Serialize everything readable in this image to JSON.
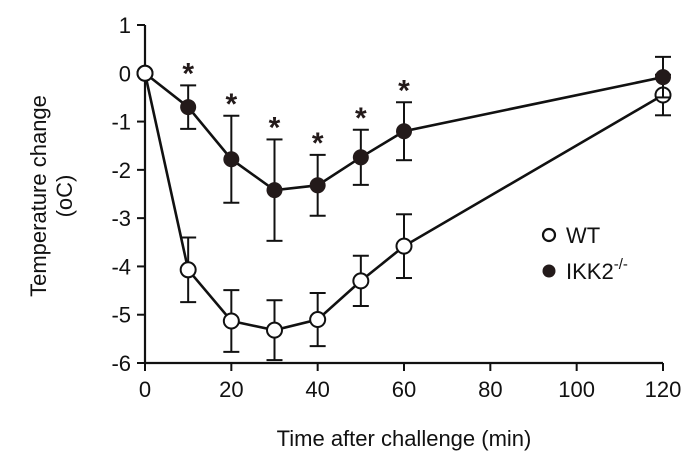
{
  "chart_data": {
    "type": "line",
    "title": "",
    "xlabel": "Time after challenge (min)",
    "ylabel_line1": "Temperature change",
    "ylabel_line2": "(oC)",
    "xlim": [
      0,
      120
    ],
    "ylim": [
      -6,
      1
    ],
    "x_ticks": [
      0,
      20,
      40,
      60,
      80,
      100,
      120
    ],
    "x_tick_labels": [
      "0",
      "20",
      "40",
      "60",
      "80",
      "100",
      "120"
    ],
    "y_ticks": [
      1,
      0,
      -1,
      -2,
      -3,
      -4,
      -5,
      -6
    ],
    "y_tick_labels": [
      "1",
      "0",
      "-1",
      "-2",
      "-3",
      "-4",
      "-5",
      "-6"
    ],
    "grid": false,
    "legend_position": "right-middle",
    "series": [
      {
        "name": "WT",
        "legend_label": "WT",
        "marker": "open-circle",
        "x": [
          0,
          10,
          20,
          30,
          40,
          50,
          60,
          120
        ],
        "values": [
          0,
          -4.07,
          -5.13,
          -5.32,
          -5.1,
          -4.3,
          -3.58,
          -0.45
        ],
        "error": [
          0,
          0.67,
          0.64,
          0.62,
          0.55,
          0.52,
          0.66,
          0.42
        ],
        "significance": []
      },
      {
        "name": "IKK2-/-",
        "legend_label": "IKK2",
        "legend_superscript": "-/-",
        "marker": "filled-circle",
        "x": [
          0,
          10,
          20,
          30,
          40,
          50,
          60,
          120
        ],
        "values": [
          0,
          -0.7,
          -1.78,
          -2.42,
          -2.32,
          -1.74,
          -1.2,
          -0.08
        ],
        "error": [
          0,
          0.45,
          0.9,
          1.05,
          0.63,
          0.57,
          0.6,
          0.42
        ],
        "significance": [
          10,
          20,
          30,
          40,
          50,
          60
        ]
      }
    ],
    "annotation_symbol": "*"
  },
  "colors": {
    "axis": "#111111",
    "wt_fill": "#ffffff",
    "ko_fill": "#231a1a",
    "line": "#111111"
  }
}
